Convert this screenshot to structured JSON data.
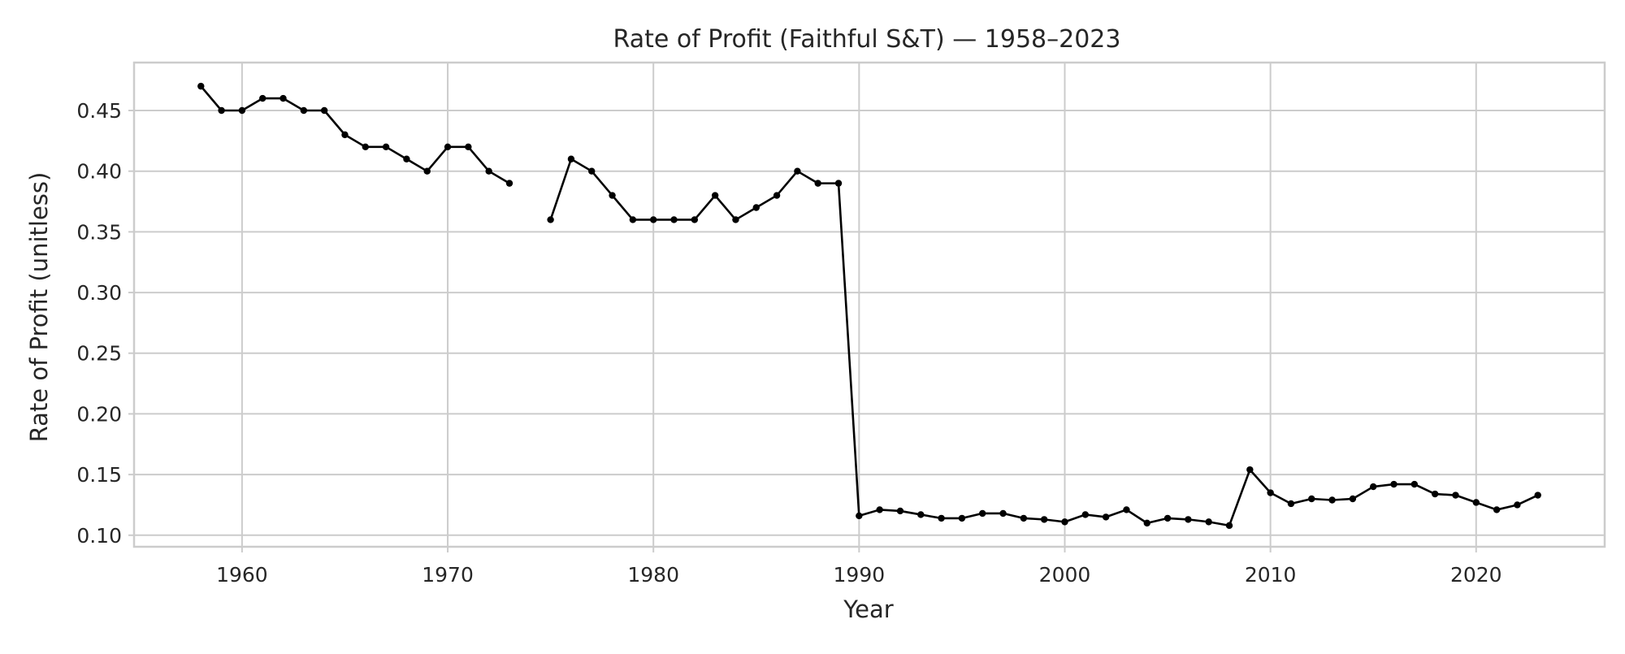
{
  "chart_data": {
    "type": "line",
    "title": "Rate of Profit (Faithful S&T) — 1958–2023",
    "xlabel": "Year",
    "ylabel": "Rate of Profit (unitless)",
    "xlim": [
      1954.75,
      2026.25
    ],
    "ylim": [
      0.0905,
      0.4895
    ],
    "xticks": [
      1960,
      1970,
      1980,
      1990,
      2000,
      2010,
      2020
    ],
    "xtick_labels": [
      "1960",
      "1970",
      "1980",
      "1990",
      "2000",
      "2010",
      "2020"
    ],
    "yticks": [
      0.1,
      0.15,
      0.2,
      0.25,
      0.3,
      0.35,
      0.4,
      0.45
    ],
    "ytick_labels": [
      "0.10",
      "0.15",
      "0.20",
      "0.25",
      "0.30",
      "0.35",
      "0.40",
      "0.45"
    ],
    "grid": true,
    "color": "#000000",
    "marker": "circle",
    "series": [
      {
        "x": [
          1958,
          1959,
          1960,
          1961,
          1962,
          1963,
          1964,
          1965,
          1966,
          1967,
          1968,
          1969,
          1970,
          1971,
          1972,
          1973,
          1974,
          1975,
          1976,
          1977,
          1978,
          1979,
          1980,
          1981,
          1982,
          1983,
          1984,
          1985,
          1986,
          1987,
          1988,
          1989,
          1990,
          1991,
          1992,
          1993,
          1994,
          1995,
          1996,
          1997,
          1998,
          1999,
          2000,
          2001,
          2002,
          2003,
          2004,
          2005,
          2006,
          2007,
          2008,
          2009,
          2010,
          2011,
          2012,
          2013,
          2014,
          2015,
          2016,
          2017,
          2018,
          2019,
          2020,
          2021,
          2022,
          2023
        ],
        "values": [
          0.47,
          0.45,
          0.45,
          0.46,
          0.46,
          0.45,
          0.45,
          0.43,
          0.42,
          0.42,
          0.41,
          0.4,
          0.42,
          0.42,
          0.4,
          0.39,
          null,
          0.36,
          0.41,
          0.4,
          0.38,
          0.36,
          0.36,
          0.36,
          0.36,
          0.38,
          0.36,
          0.37,
          0.38,
          0.4,
          0.39,
          0.39,
          0.116,
          0.121,
          0.12,
          0.117,
          0.114,
          0.114,
          0.118,
          0.118,
          0.114,
          0.113,
          0.111,
          0.117,
          0.115,
          0.121,
          0.11,
          0.114,
          0.113,
          0.111,
          0.108,
          0.154,
          0.135,
          0.126,
          0.13,
          0.129,
          0.13,
          0.14,
          0.142,
          0.142,
          0.134,
          0.133,
          0.127,
          0.121,
          0.125,
          0.133
        ]
      }
    ]
  }
}
